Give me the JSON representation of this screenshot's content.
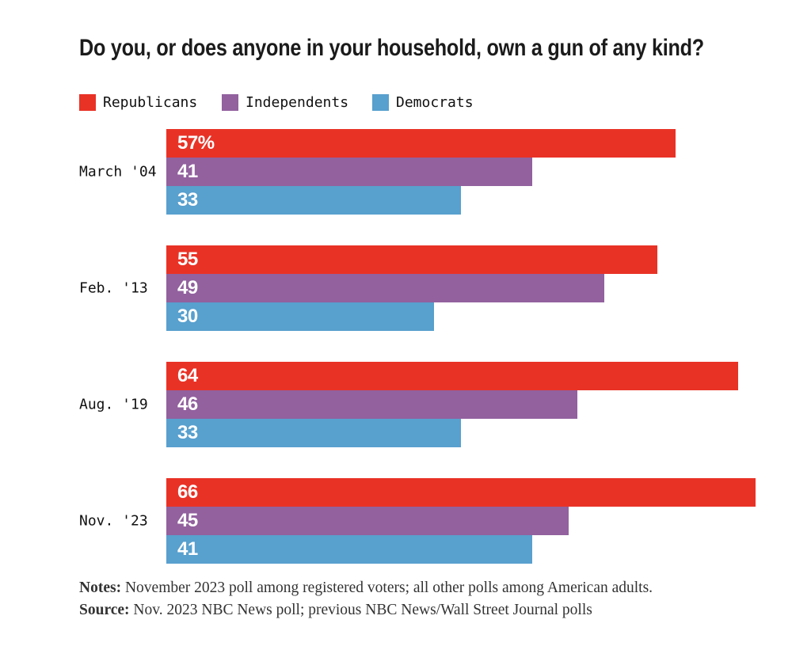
{
  "chart_data": {
    "type": "bar",
    "orientation": "horizontal",
    "title": "Do you, or does anyone in your household, own a gun of any kind?",
    "categories": [
      "March '04",
      "Feb. '13",
      "Aug. '19",
      "Nov. '23"
    ],
    "series": [
      {
        "name": "Republicans",
        "color": "#e93226",
        "values": [
          57,
          55,
          64,
          66
        ]
      },
      {
        "name": "Independents",
        "color": "#92619e",
        "values": [
          41,
          49,
          46,
          45
        ]
      },
      {
        "name": "Democrats",
        "color": "#58a0ce",
        "values": [
          33,
          30,
          33,
          41
        ]
      }
    ],
    "value_labels": [
      [
        "57%",
        "41",
        "33"
      ],
      [
        "55",
        "49",
        "30"
      ],
      [
        "64",
        "46",
        "33"
      ],
      [
        "66",
        "45",
        "41"
      ]
    ],
    "xlim": [
      0,
      72
    ],
    "grid": false,
    "legend_position": "top"
  },
  "legend": [
    {
      "label": "Republicans",
      "color": "#e93226"
    },
    {
      "label": "Independents",
      "color": "#92619e"
    },
    {
      "label": "Democrats",
      "color": "#58a0ce"
    }
  ],
  "notes": {
    "notes_label": "Notes:",
    "notes_text": " November 2023 poll among registered voters; all other polls among American adults.",
    "source_label": "Source:",
    "source_text": " Nov. 2023 NBC News poll; previous NBC News/Wall Street Journal polls"
  }
}
